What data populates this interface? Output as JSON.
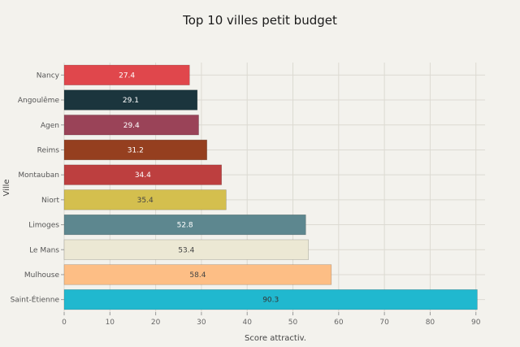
{
  "chart_data": {
    "type": "bar",
    "orientation": "horizontal",
    "title": "Top 10 villes petit budget",
    "xlabel": "Score attractiv.",
    "ylabel": "Ville",
    "xlim": [
      0,
      92
    ],
    "xticks": [
      0,
      10,
      20,
      30,
      40,
      50,
      60,
      70,
      80,
      90
    ],
    "grid": true,
    "categories": [
      "Nancy",
      "Angoulême",
      "Agen",
      "Reims",
      "Montauban",
      "Niort",
      "Limoges",
      "Le Mans",
      "Mulhouse",
      "Saint-Étienne"
    ],
    "values": [
      27.4,
      29.1,
      29.4,
      31.2,
      34.4,
      35.4,
      52.8,
      53.4,
      58.4,
      90.3
    ],
    "data_labels": [
      "27.4",
      "29.1",
      "29.4",
      "31.2",
      "34.4",
      "35.4",
      "52.8",
      "53.4",
      "58.4",
      "90.3"
    ],
    "colors": [
      "#e0474c",
      "#1b353d",
      "#9a4358",
      "#953f1f",
      "#bd3f3f",
      "#d4bf4e",
      "#5d878f",
      "#ece8d4",
      "#fdbe85",
      "#20b8cf"
    ],
    "label_colors": [
      "#ffffff",
      "#ffffff",
      "#ffffff",
      "#ffffff",
      "#ffffff",
      "#444444",
      "#ffffff",
      "#444444",
      "#444444",
      "#333333"
    ]
  }
}
